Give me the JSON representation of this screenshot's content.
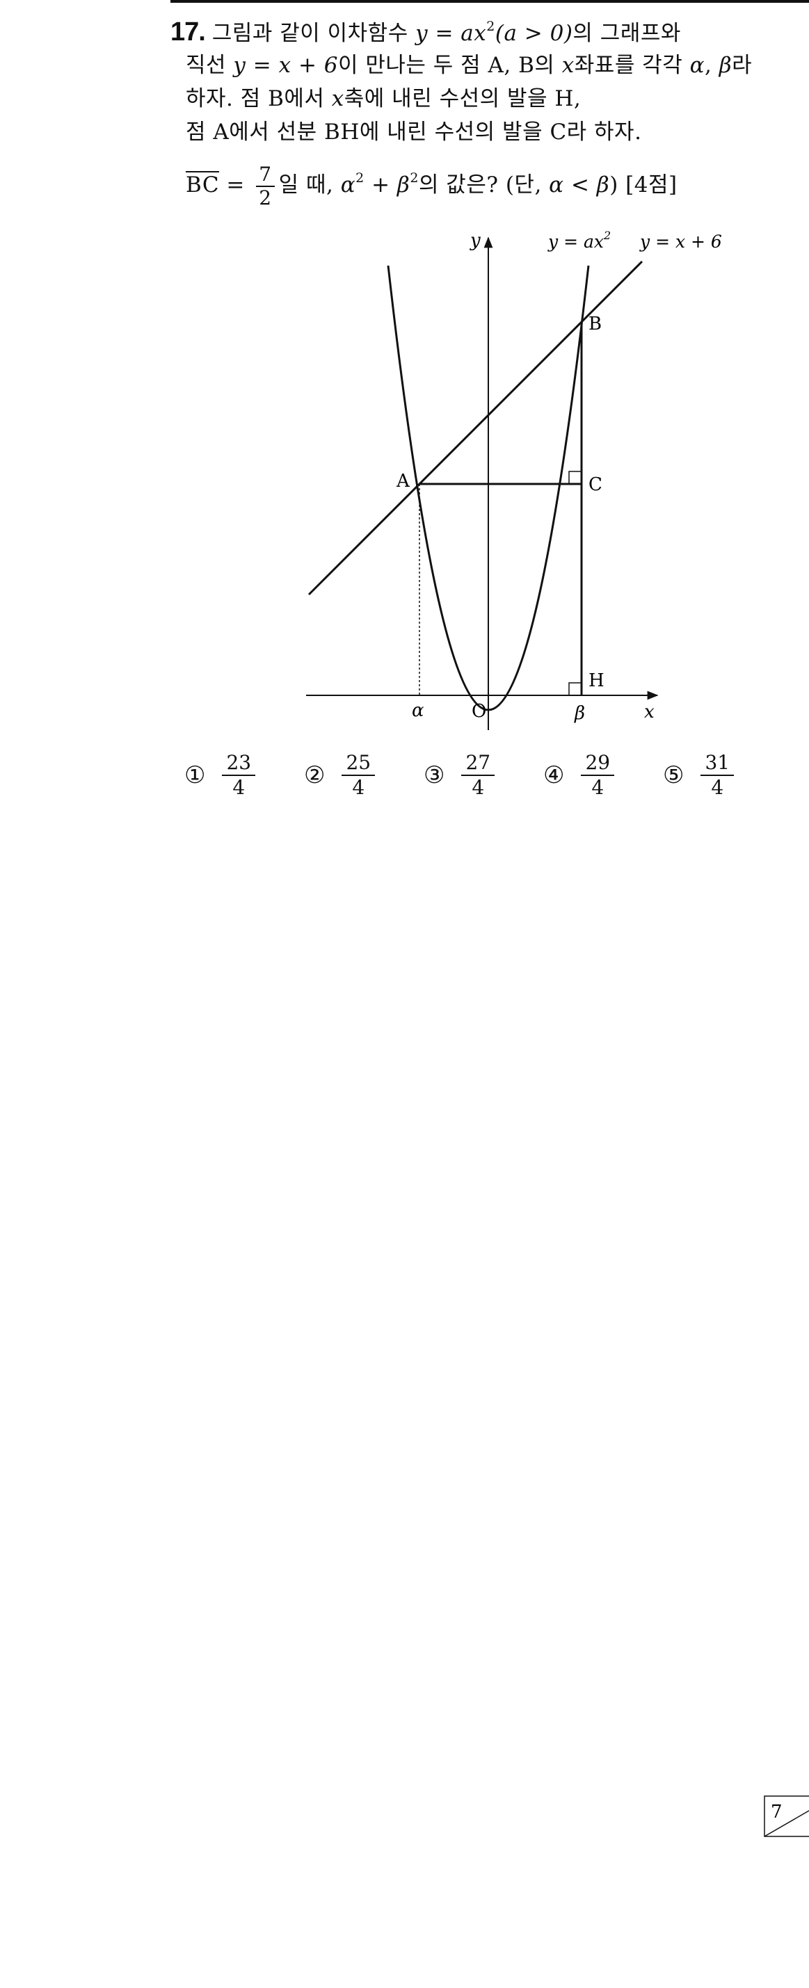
{
  "problem": {
    "number": "17.",
    "line1": {
      "text_a": "그림과 같이 이차함수 ",
      "func": "y = ax",
      "exp": "2",
      "cond": "(a > 0)",
      "text_b": "의 그래프와"
    },
    "line2": {
      "text_a": "직선 ",
      "func": "y = x + 6",
      "text_b": "이 만나는 두 점 A, B의 ",
      "var_x": "x",
      "text_c": "좌표를 각각 ",
      "alpha": "α",
      "comma": ", ",
      "beta": "β",
      "text_d": "라"
    },
    "line3": {
      "text_a": "하자. 점 B에서 ",
      "var_x": "x",
      "text_b": "축에 내린 수선의 발을 H,"
    },
    "line4": {
      "text": "점 A에서 선분 BH에 내린 수선의 발을 C라 하자."
    },
    "line5": {
      "bc": "BC",
      "eq": " = ",
      "frac_num": "7",
      "frac_den": "2",
      "text_a": "일 때, ",
      "expr_a": "α",
      "plus": " + ",
      "expr_b": "β",
      "exp": "2",
      "text_b": "의 값은? (단, ",
      "cond": "α < β",
      "text_c": ") [4점]"
    }
  },
  "figure": {
    "y_axis_label": "y",
    "x_axis_label": "x",
    "parabola_label": "y = ax",
    "parabola_label_exp": "2",
    "line_label": "y = x + 6",
    "point_A": "A",
    "point_B": "B",
    "point_C": "C",
    "point_H": "H",
    "origin": "O",
    "alpha": "α",
    "beta": "β"
  },
  "choices": [
    {
      "mark": "①",
      "num": "23",
      "den": "4"
    },
    {
      "mark": "②",
      "num": "25",
      "den": "4"
    },
    {
      "mark": "③",
      "num": "27",
      "den": "4"
    },
    {
      "mark": "④",
      "num": "29",
      "den": "4"
    },
    {
      "mark": "⑤",
      "num": "31",
      "den": "4"
    }
  ],
  "page_number": "7"
}
